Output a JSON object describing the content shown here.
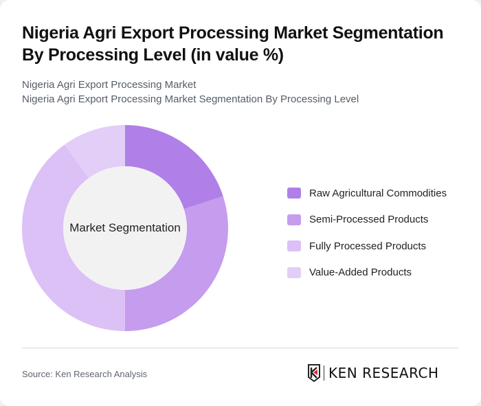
{
  "header": {
    "title": "Nigeria Agri Export Processing Market Segmentation By Processing Level (in value %)",
    "subtitle_line1": "Nigeria Agri Export Processing Market",
    "subtitle_line2": "Nigeria Agri Export Processing Market Segmentation By Processing Level"
  },
  "chart_data": {
    "type": "pie",
    "variant": "donut",
    "title": "Nigeria Agri Export Processing Market Segmentation By Processing Level (in value %)",
    "center_label": "Market Segmentation",
    "categories": [
      "Raw Agricultural Commodities",
      "Semi-Processed Products",
      "Fully Processed Products",
      "Value-Added Products"
    ],
    "values": [
      20,
      30,
      40,
      10
    ],
    "colors": [
      "#B07FE8",
      "#C59CEE",
      "#DBC1F6",
      "#E2CEF7"
    ],
    "legend_position": "right"
  },
  "legend": {
    "items": [
      {
        "label": "Raw Agricultural Commodities",
        "color": "#B07FE8"
      },
      {
        "label": "Semi-Processed Products",
        "color": "#C59CEE"
      },
      {
        "label": "Fully Processed Products",
        "color": "#DBC1F6"
      },
      {
        "label": "Value-Added Products",
        "color": "#E2CEF7"
      }
    ]
  },
  "footer": {
    "source": "Source: Ken Research Analysis",
    "logo_text": "KEN RESEARCH",
    "logo_icon": "ken-research-k-shield-icon"
  }
}
